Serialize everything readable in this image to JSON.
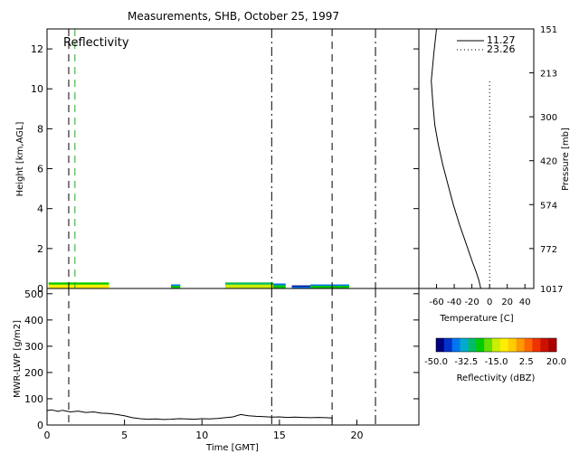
{
  "figure": {
    "title": "Measurements, SHB, October 25, 1997"
  },
  "chart_data": [
    {
      "id": "reflectivity",
      "type": "heatmap",
      "title": "Reflectivity",
      "xlabel": "",
      "ylabel": "Height [km,AGL]",
      "xlim": [
        0,
        24
      ],
      "ylim": [
        0,
        13
      ],
      "yticks": [
        0,
        2,
        4,
        6,
        8,
        10,
        12
      ],
      "colorbar_ref": "colorbar",
      "echoes": [
        {
          "x": [
            0.1,
            4.0
          ],
          "y": [
            0.0,
            0.3
          ],
          "dbz": -10
        },
        {
          "x": [
            8.0,
            8.6
          ],
          "y": [
            0.0,
            0.2
          ],
          "dbz": -25
        },
        {
          "x": [
            11.5,
            14.6
          ],
          "y": [
            0.0,
            0.3
          ],
          "dbz": -15
        },
        {
          "x": [
            14.6,
            15.4
          ],
          "y": [
            0.0,
            0.25
          ],
          "dbz": -25
        },
        {
          "x": [
            15.8,
            17.0
          ],
          "y": [
            0.0,
            0.15
          ],
          "dbz": -40
        },
        {
          "x": [
            17.0,
            19.5
          ],
          "y": [
            0.0,
            0.2
          ],
          "dbz": -25
        }
      ],
      "markers": [
        {
          "x": 1.4,
          "style": "dash",
          "color": "#000000"
        },
        {
          "x": 1.8,
          "style": "dash",
          "color": "#22aa22"
        },
        {
          "x": 14.5,
          "style": "dashdot",
          "color": "#000000"
        },
        {
          "x": 18.4,
          "style": "dash",
          "color": "#000000"
        },
        {
          "x": 21.2,
          "style": "dashdot",
          "color": "#000000"
        }
      ]
    },
    {
      "id": "sounding",
      "type": "line",
      "xlabel": "Temperature [C]",
      "ylabel": "Pressure [mb]",
      "xlim": [
        -80,
        50
      ],
      "xticks": [
        -60,
        -40,
        -20,
        0,
        20,
        40
      ],
      "ylim_height_km": [
        0,
        13
      ],
      "pressure_ticks": [
        {
          "label": "151",
          "h": 13.0
        },
        {
          "label": "213",
          "h": 10.8
        },
        {
          "label": "300",
          "h": 8.6
        },
        {
          "label": "420",
          "h": 6.4
        },
        {
          "label": "574",
          "h": 4.2
        },
        {
          "label": "772",
          "h": 2.0
        },
        {
          "label": "1017",
          "h": 0.0
        }
      ],
      "series": [
        {
          "name": "11.27",
          "style": "solid",
          "temp": [
            -10,
            -12,
            -15,
            -20,
            -27,
            -34,
            -41,
            -47,
            -53,
            -58,
            -62,
            -64,
            -66,
            -63,
            -60
          ],
          "height_km": [
            0,
            0.4,
            0.8,
            1.4,
            2.3,
            3.2,
            4.2,
            5.2,
            6.2,
            7.2,
            8.2,
            9.2,
            10.4,
            11.8,
            13.0
          ]
        },
        {
          "name": "23.26",
          "style": "dotted",
          "temp": [
            0,
            0
          ],
          "height_km": [
            0,
            10.5
          ]
        }
      ]
    },
    {
      "id": "lwp",
      "type": "line",
      "xlabel": "Time [GMT]",
      "ylabel": "MWR-LWP [g/m2]",
      "xlim": [
        0,
        24
      ],
      "xticks": [
        0,
        5,
        10,
        15,
        20
      ],
      "ylim": [
        0,
        520
      ],
      "yticks": [
        0,
        100,
        200,
        300,
        400,
        500
      ],
      "series": [
        {
          "name": "",
          "x": [
            0,
            0.3,
            0.7,
            1.0,
            1.5,
            2.0,
            2.5,
            3.0,
            3.5,
            4.0,
            4.5,
            5.0,
            5.5,
            6.0,
            6.5,
            7.0,
            7.5,
            8.0,
            8.5,
            9.0,
            9.5,
            10.0,
            10.5,
            11.0,
            11.5,
            12.0,
            12.5,
            13.0,
            13.5,
            14.0,
            14.5,
            15.0,
            15.5,
            16.0,
            16.5,
            17.0,
            17.5,
            18.0,
            18.4
          ],
          "y": [
            55,
            58,
            52,
            56,
            50,
            53,
            48,
            50,
            45,
            44,
            40,
            35,
            28,
            24,
            22,
            23,
            21,
            22,
            24,
            23,
            22,
            24,
            23,
            25,
            28,
            31,
            40,
            35,
            33,
            32,
            30,
            31,
            29,
            30,
            29,
            28,
            29,
            28,
            27
          ]
        }
      ],
      "markers": [
        {
          "x": 1.4,
          "style": "dash"
        },
        {
          "x": 14.5,
          "style": "dashdot"
        },
        {
          "x": 18.4,
          "style": "dash"
        },
        {
          "x": 21.2,
          "style": "dashdot"
        }
      ]
    },
    {
      "id": "colorbar",
      "type": "heatmap",
      "xlabel": "Reflectivity (dBZ)",
      "range": [
        -50,
        20
      ],
      "tick_labels": [
        "-50.0",
        "-32.5",
        "-15.0",
        "2.5",
        "20.0"
      ],
      "tick_values": [
        -50,
        -32.5,
        -15,
        2.5,
        20
      ],
      "colors": [
        "#000080",
        "#0033cc",
        "#0077ee",
        "#00aacc",
        "#00bb66",
        "#00cc00",
        "#66dd00",
        "#ccee00",
        "#ffee00",
        "#ffcc00",
        "#ff9900",
        "#ff6600",
        "#ee3300",
        "#cc1100",
        "#aa0000"
      ]
    }
  ]
}
